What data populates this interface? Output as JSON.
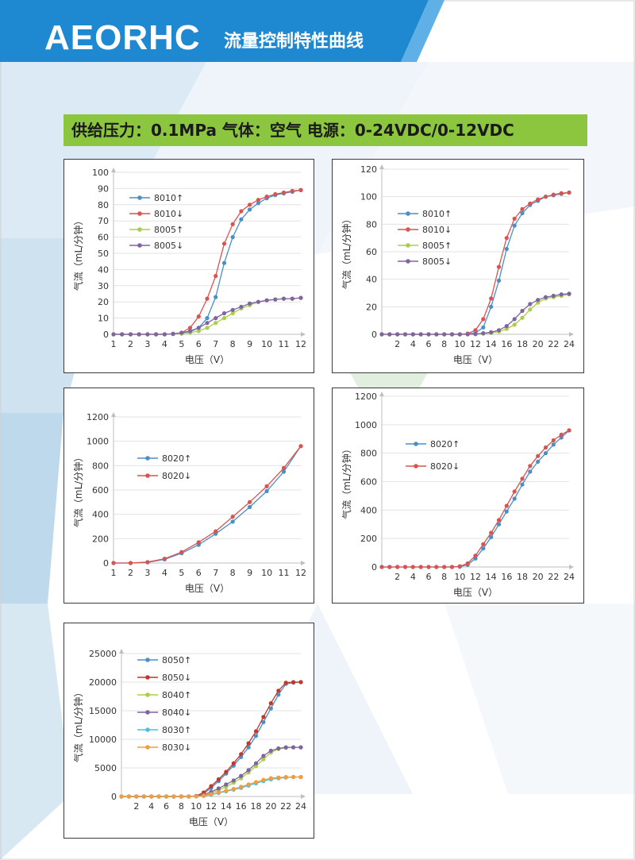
{
  "header": {
    "brand": "AEORHC",
    "title": "流量控制特性曲线"
  },
  "spec": {
    "text": "供给压力：0.1MPa 气体：空气 电源：0-24VDC/0-12VDC"
  },
  "chart_data": [
    {
      "type": "line",
      "xlabel": "电压（V）",
      "ylabel": "气流（mL/分钟）",
      "xlim": [
        1,
        12
      ],
      "ylim": [
        0,
        100
      ],
      "xticks": [
        1,
        2,
        3,
        4,
        5,
        6,
        7,
        8,
        9,
        10,
        11,
        12
      ],
      "yticks": [
        0,
        10,
        20,
        30,
        40,
        50,
        60,
        70,
        80,
        90,
        100
      ],
      "x": [
        1,
        1.5,
        2,
        2.5,
        3,
        3.5,
        4,
        4.5,
        5,
        5.5,
        6,
        6.5,
        7,
        7.5,
        8,
        8.5,
        9,
        9.5,
        10,
        10.5,
        11,
        11.5,
        12
      ],
      "series": [
        {
          "name": "8010↑",
          "color": "#4a8fc7",
          "values": [
            0,
            0,
            0,
            0,
            0,
            0,
            0,
            0.2,
            0.5,
            1.5,
            4,
            10,
            23,
            44,
            60,
            71,
            77,
            81,
            84,
            86,
            87,
            88,
            89
          ]
        },
        {
          "name": "8010↓",
          "color": "#d9534f",
          "values": [
            0,
            0,
            0,
            0,
            0,
            0,
            0,
            0.3,
            1,
            4,
            11,
            22,
            36,
            56,
            68,
            76,
            80,
            83,
            85,
            86.5,
            87.5,
            88.5,
            89
          ]
        },
        {
          "name": "8005↑",
          "color": "#a7cf4b",
          "values": [
            0,
            0,
            0,
            0,
            0,
            0,
            0,
            0.2,
            0.5,
            1,
            2,
            4,
            7,
            10,
            13,
            16,
            18,
            20,
            21,
            21.5,
            22,
            22,
            22.5
          ]
        },
        {
          "name": "8005↓",
          "color": "#8064a2",
          "values": [
            0,
            0,
            0,
            0,
            0,
            0,
            0,
            0.3,
            1,
            2,
            4,
            7,
            10,
            13,
            15,
            17,
            19,
            20,
            21,
            21.5,
            22,
            22,
            22.5
          ]
        }
      ]
    },
    {
      "type": "line",
      "xlabel": "电压（V）",
      "ylabel": "气流（mL/分钟）",
      "xlim": [
        0,
        24
      ],
      "ylim": [
        0,
        120
      ],
      "xticks": [
        2,
        4,
        6,
        8,
        10,
        12,
        14,
        16,
        18,
        20,
        22,
        24
      ],
      "yticks": [
        0,
        20,
        40,
        60,
        80,
        100,
        120
      ],
      "x": [
        0,
        1,
        2,
        3,
        4,
        5,
        6,
        7,
        8,
        9,
        10,
        11,
        12,
        13,
        14,
        15,
        16,
        17,
        18,
        19,
        20,
        21,
        22,
        23,
        24
      ],
      "series": [
        {
          "name": "8010↑",
          "color": "#4a8fc7",
          "values": [
            0,
            0,
            0,
            0,
            0,
            0,
            0,
            0,
            0,
            0,
            0,
            0.3,
            1,
            5,
            20,
            39,
            62,
            79,
            88,
            94,
            97,
            100,
            101,
            102,
            103
          ]
        },
        {
          "name": "8010↓",
          "color": "#d9534f",
          "values": [
            0,
            0,
            0,
            0,
            0,
            0,
            0,
            0,
            0,
            0,
            0,
            0.5,
            3,
            11,
            26,
            49,
            70,
            84,
            91,
            95,
            98,
            100,
            101.5,
            102.5,
            103
          ]
        },
        {
          "name": "8005↑",
          "color": "#a7cf4b",
          "values": [
            0,
            0,
            0,
            0,
            0,
            0,
            0,
            0,
            0,
            0,
            0,
            0,
            0,
            0.5,
            1,
            2,
            4,
            7,
            12,
            18,
            23,
            26,
            27,
            28,
            29
          ]
        },
        {
          "name": "8005↓",
          "color": "#8064a2",
          "values": [
            0,
            0,
            0,
            0,
            0,
            0,
            0,
            0,
            0,
            0,
            0,
            0,
            0.2,
            0.8,
            1.5,
            3,
            6,
            11,
            17,
            22,
            25,
            27,
            28,
            29,
            29.5
          ]
        }
      ]
    },
    {
      "type": "line",
      "xlabel": "电压（V）",
      "ylabel": "气流（mL/分钟）",
      "xlim": [
        1,
        12
      ],
      "ylim": [
        0,
        1200
      ],
      "xticks": [
        1,
        2,
        3,
        4,
        5,
        6,
        7,
        8,
        9,
        10,
        11,
        12
      ],
      "yticks": [
        0,
        200,
        400,
        600,
        800,
        1000,
        1200
      ],
      "x": [
        1,
        2,
        3,
        4,
        5,
        6,
        7,
        8,
        9,
        10,
        11,
        12
      ],
      "series": [
        {
          "name": "8020↑",
          "color": "#4a8fc7",
          "values": [
            0,
            0,
            5,
            30,
            80,
            150,
            240,
            340,
            460,
            590,
            750,
            960
          ]
        },
        {
          "name": "8020↓",
          "color": "#d9534f",
          "values": [
            0,
            0,
            8,
            35,
            90,
            170,
            260,
            380,
            500,
            630,
            780,
            960
          ]
        }
      ]
    },
    {
      "type": "line",
      "xlabel": "电压（V）",
      "ylabel": "气流（mL/分钟）",
      "xlim": [
        0,
        24
      ],
      "ylim": [
        0,
        1200
      ],
      "xticks": [
        2,
        4,
        6,
        8,
        10,
        12,
        14,
        16,
        18,
        20,
        22,
        24
      ],
      "yticks": [
        0,
        200,
        400,
        600,
        800,
        1000,
        1200
      ],
      "x": [
        0,
        1,
        2,
        3,
        4,
        5,
        6,
        7,
        8,
        9,
        10,
        11,
        12,
        13,
        14,
        15,
        16,
        17,
        18,
        19,
        20,
        21,
        22,
        23,
        24
      ],
      "series": [
        {
          "name": "8020↑",
          "color": "#4a8fc7",
          "values": [
            0,
            0,
            0,
            0,
            0,
            0,
            0,
            0,
            0,
            0,
            2,
            15,
            60,
            130,
            210,
            300,
            390,
            480,
            580,
            670,
            740,
            800,
            860,
            910,
            960
          ]
        },
        {
          "name": "8020↓",
          "color": "#d9534f",
          "values": [
            0,
            0,
            0,
            0,
            0,
            0,
            0,
            0,
            0,
            0,
            5,
            25,
            80,
            160,
            240,
            330,
            430,
            530,
            620,
            710,
            780,
            840,
            890,
            930,
            960
          ]
        }
      ]
    },
    {
      "type": "line",
      "xlabel": "电压（V）",
      "ylabel": "气流（mL/分钟）",
      "xlim": [
        0,
        24
      ],
      "ylim": [
        0,
        25000
      ],
      "xticks": [
        2,
        4,
        6,
        8,
        10,
        12,
        14,
        16,
        18,
        20,
        22,
        24
      ],
      "yticks": [
        0,
        5000,
        10000,
        15000,
        20000,
        25000
      ],
      "x": [
        0,
        1,
        2,
        3,
        4,
        5,
        6,
        7,
        8,
        9,
        10,
        11,
        12,
        13,
        14,
        15,
        16,
        17,
        18,
        19,
        20,
        21,
        22,
        23,
        24
      ],
      "series": [
        {
          "name": "8050↑",
          "color": "#4a8fc7",
          "values": [
            0,
            0,
            0,
            0,
            0,
            0,
            0,
            0,
            0,
            0,
            50,
            500,
            1500,
            2700,
            4000,
            5400,
            6900,
            8600,
            10600,
            13000,
            15400,
            17800,
            19700,
            19900,
            20000
          ]
        },
        {
          "name": "8050↓",
          "color": "#c0392b",
          "values": [
            0,
            0,
            0,
            0,
            0,
            0,
            0,
            0,
            0,
            0,
            100,
            700,
            1800,
            3000,
            4300,
            5800,
            7400,
            9300,
            11400,
            13900,
            16300,
            18500,
            19900,
            20000,
            20000
          ]
        },
        {
          "name": "8040↑",
          "color": "#a7cf4b",
          "values": [
            0,
            0,
            0,
            0,
            0,
            0,
            0,
            0,
            0,
            0,
            20,
            200,
            600,
            1100,
            1700,
            2400,
            3200,
            4200,
            5300,
            6500,
            7700,
            8300,
            8500,
            8600,
            8600
          ]
        },
        {
          "name": "8040↓",
          "color": "#8064a2",
          "values": [
            0,
            0,
            0,
            0,
            0,
            0,
            0,
            0,
            0,
            0,
            40,
            300,
            800,
            1400,
            2100,
            2800,
            3600,
            4600,
            5800,
            7100,
            8000,
            8400,
            8600,
            8600,
            8600
          ]
        },
        {
          "name": "8030↑",
          "color": "#4bc2d9",
          "values": [
            0,
            0,
            0,
            0,
            0,
            0,
            0,
            0,
            0,
            0,
            10,
            100,
            300,
            600,
            900,
            1200,
            1500,
            1900,
            2300,
            2700,
            3000,
            3200,
            3300,
            3400,
            3400
          ]
        },
        {
          "name": "8030↓",
          "color": "#f39c3c",
          "values": [
            0,
            0,
            0,
            0,
            0,
            0,
            0,
            0,
            0,
            0,
            20,
            150,
            400,
            700,
            1000,
            1300,
            1700,
            2100,
            2500,
            2900,
            3200,
            3300,
            3400,
            3400,
            3400
          ]
        }
      ]
    }
  ]
}
